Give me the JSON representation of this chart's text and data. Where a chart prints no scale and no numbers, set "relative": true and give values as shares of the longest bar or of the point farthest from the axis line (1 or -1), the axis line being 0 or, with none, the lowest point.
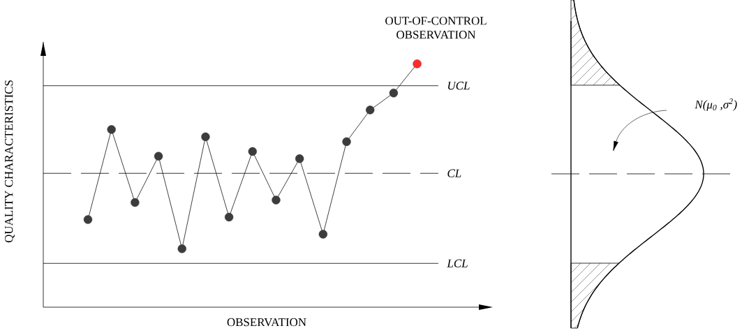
{
  "chart_data": [
    {
      "type": "line",
      "xlabel": "OBSERVATION",
      "ylabel": "QUALITY CHARACTERISTICS",
      "relative": true,
      "categories": [
        null,
        null,
        null,
        null,
        null,
        null,
        null,
        null,
        null,
        null,
        null,
        null,
        null,
        null,
        null
      ],
      "series": [
        {
          "color": "#111111",
          "colors": [
            "#3c3c3c",
            "#3c3c3c",
            "#3c3c3c",
            "#3c3c3c",
            "#3c3c3c",
            "#3c3c3c",
            "#3c3c3c",
            "#3c3c3c",
            "#3c3c3c",
            "#3c3c3c",
            "#3c3c3c",
            "#3c3c3c",
            "#3c3c3c",
            "#3c3c3c",
            "#ff2a2a"
          ],
          "values": [
            0.36,
            0.73,
            0.43,
            0.62,
            0.24,
            0.7,
            0.37,
            0.64,
            0.44,
            0.61,
            0.3,
            0.68,
            0.81,
            0.88,
            1.0
          ]
        }
      ],
      "marker": "circle",
      "ref_lines": [
        {
          "axis": "y",
          "value": 0.91,
          "label": "UCL"
        },
        {
          "axis": "y",
          "value": 0.55,
          "label": "CL",
          "line_style": "dashed"
        },
        {
          "axis": "y",
          "value": 0.18,
          "label": "LCL"
        }
      ],
      "annotations": [
        "OUT-OF-CONTROL OBSERVATION"
      ]
    },
    {
      "type": "other",
      "annotations": [
        "N(μ$_{0}$ ,σ$^{2}$)"
      ]
    }
  ]
}
